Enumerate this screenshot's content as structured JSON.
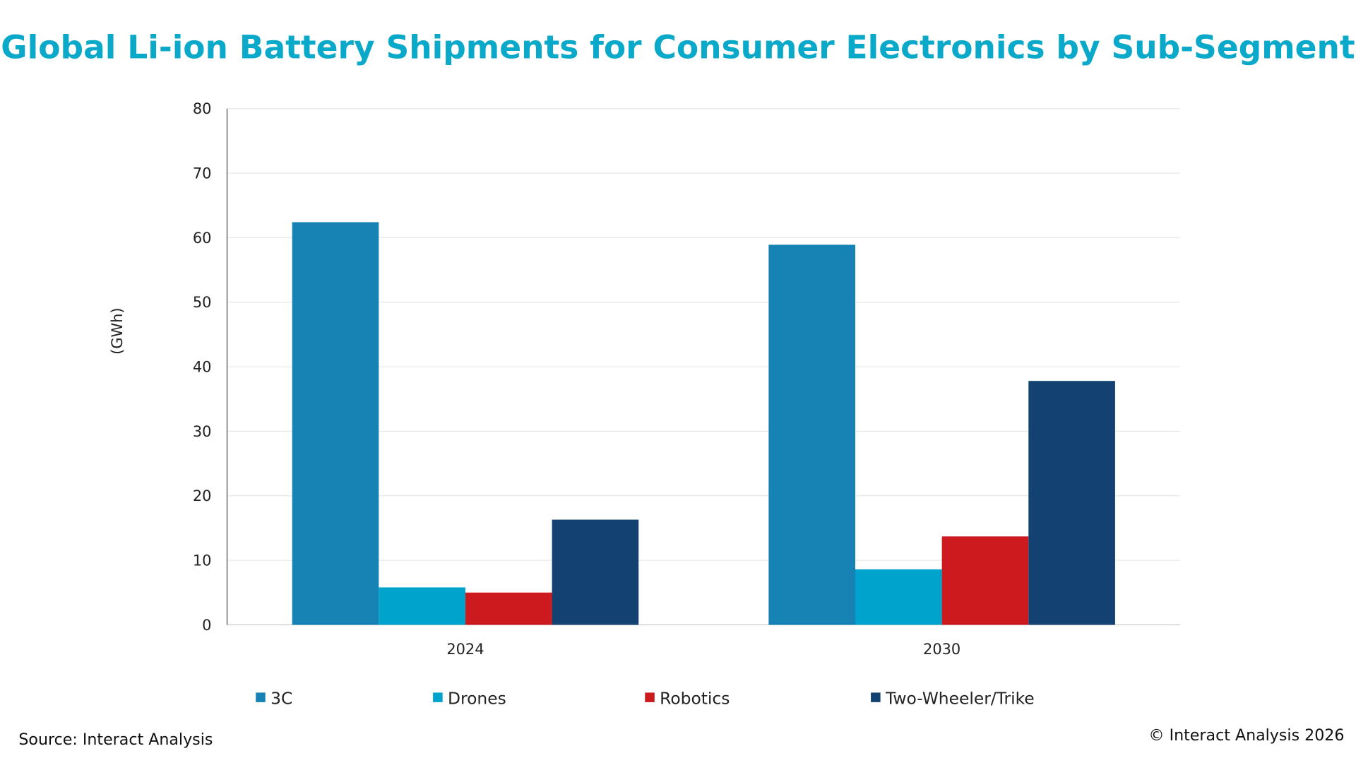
{
  "title_color": "#0aa8c9",
  "chart_data": {
    "type": "bar",
    "title": "Global Li-ion Battery Shipments for Consumer Electronics by Sub-Segment",
    "xlabel": "",
    "ylabel": "(GWh)",
    "categories": [
      "2024",
      "2030"
    ],
    "ylim": [
      0,
      80
    ],
    "yticks": [
      0,
      10,
      20,
      30,
      40,
      50,
      60,
      70,
      80
    ],
    "grid": true,
    "legend_position": "bottom",
    "series": [
      {
        "name": "3C",
        "color": "#1782b4",
        "values": [
          62.4,
          58.9
        ]
      },
      {
        "name": "Drones",
        "color": "#00a3cc",
        "values": [
          5.8,
          8.6
        ]
      },
      {
        "name": "Robotics",
        "color": "#cc1a1f",
        "values": [
          5.0,
          13.7
        ]
      },
      {
        "name": "Two-Wheeler/Trike",
        "color": "#134272",
        "values": [
          16.3,
          37.8
        ]
      }
    ]
  },
  "footer": {
    "source": "Source: Interact Analysis",
    "copyright": "© Interact Analysis 2026"
  }
}
